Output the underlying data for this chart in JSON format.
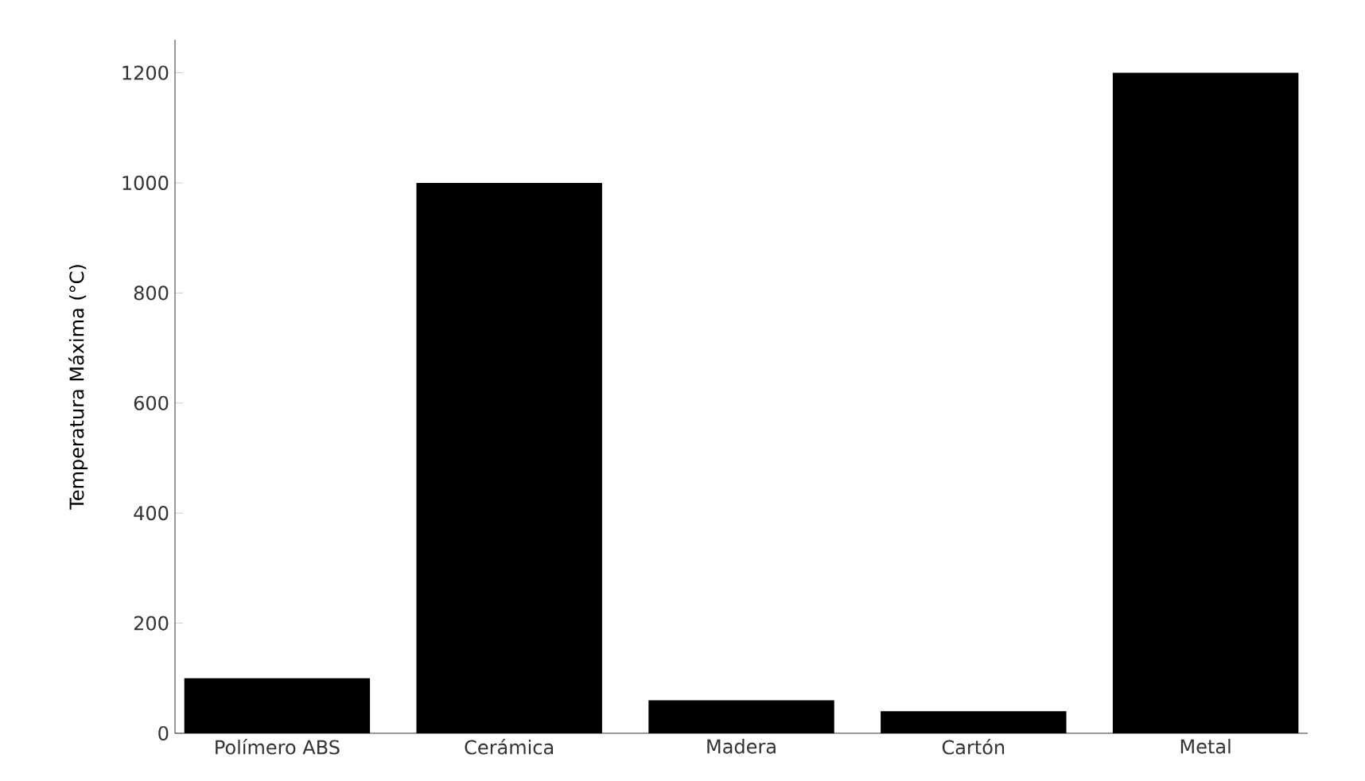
{
  "chart_data": {
    "type": "bar",
    "ylabel": "Temperatura Máxima (°C)",
    "categories": [
      "Polímero ABS",
      "Cerámica",
      "Madera",
      "Cartón",
      "Metal"
    ],
    "values": [
      100,
      1000,
      60,
      40,
      1200
    ],
    "color": "#000000",
    "ylim": [
      0,
      1260
    ],
    "yticks": [
      0,
      200,
      400,
      600,
      800,
      1000,
      1200
    ],
    "grid": false
  }
}
